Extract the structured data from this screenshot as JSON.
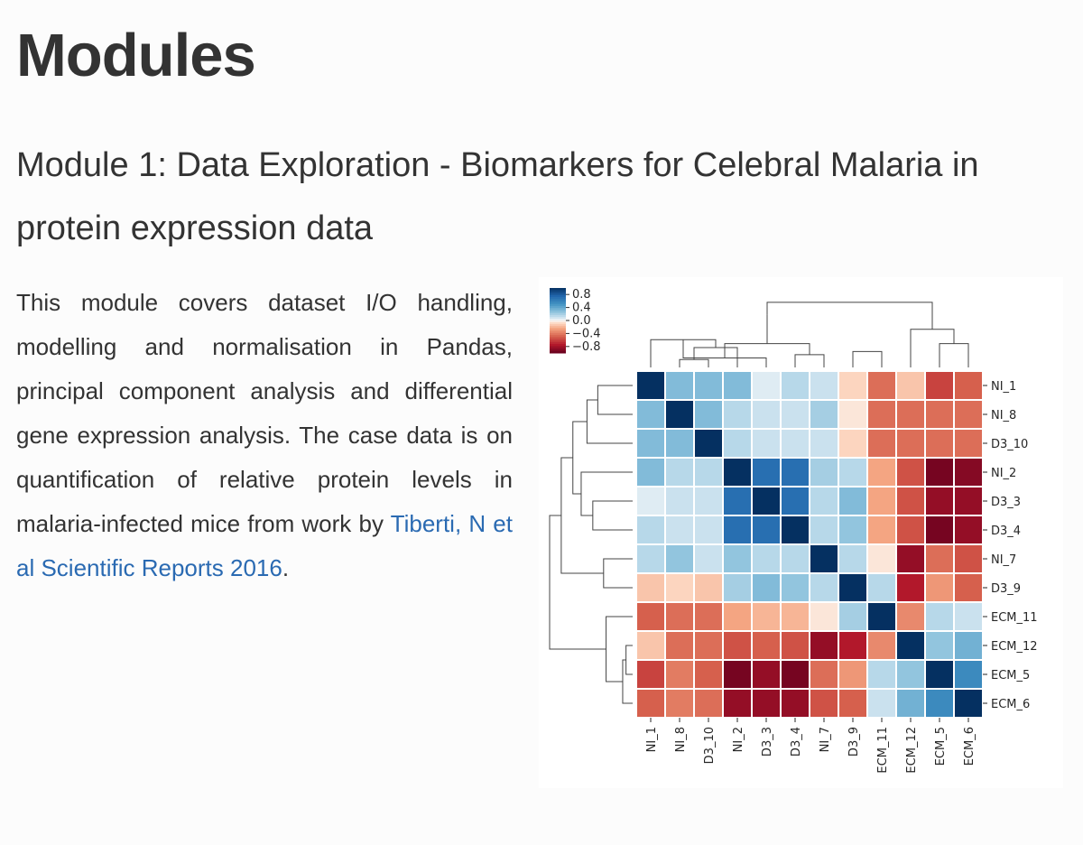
{
  "page": {
    "heading": "Modules",
    "section_title": "Module 1: Data Exploration - Biomarkers for Celebral Malaria in protein expression data",
    "description": "This module covers dataset I/O handling, modelling and normalisation in Pandas, principal component analysis and differential gene expression analysis. The case data is on quantification of relative protein levels in malaria-infected mice from work by",
    "link_text": "Tiberti, N et al Scientific Reports 2016",
    "description_end": "."
  },
  "chart_data": {
    "type": "heatmap",
    "title": "",
    "xlabel": "",
    "ylabel": "",
    "row_labels": [
      "NI_1",
      "NI_8",
      "D3_10",
      "NI_2",
      "D3_3",
      "D3_4",
      "NI_7",
      "D3_9",
      "ECM_11",
      "ECM_12",
      "ECM_5",
      "ECM_6"
    ],
    "col_labels": [
      "NI_1",
      "NI_8",
      "D3_10",
      "NI_2",
      "D3_3",
      "D3_4",
      "NI_7",
      "D3_9",
      "ECM_11",
      "ECM_12",
      "ECM_5",
      "ECM_6"
    ],
    "values": [
      [
        1.0,
        0.3,
        0.3,
        0.3,
        0.05,
        0.15,
        0.1,
        -0.1,
        -0.45,
        -0.15,
        -0.6,
        -0.5
      ],
      [
        0.3,
        1.0,
        0.3,
        0.15,
        0.1,
        0.1,
        0.2,
        -0.05,
        -0.45,
        -0.45,
        -0.45,
        -0.45
      ],
      [
        0.3,
        0.3,
        1.0,
        0.15,
        0.1,
        0.1,
        0.1,
        -0.1,
        -0.45,
        -0.45,
        -0.45,
        -0.45
      ],
      [
        0.3,
        0.15,
        0.15,
        1.0,
        0.7,
        0.7,
        0.2,
        0.15,
        -0.25,
        -0.55,
        -0.95,
        -0.9
      ],
      [
        0.05,
        0.1,
        0.1,
        0.7,
        1.0,
        0.7,
        0.15,
        0.3,
        -0.25,
        -0.55,
        -0.85,
        -0.85
      ],
      [
        0.15,
        0.1,
        0.1,
        0.7,
        0.7,
        1.0,
        0.15,
        0.25,
        -0.25,
        -0.55,
        -0.95,
        -0.85
      ],
      [
        0.15,
        0.25,
        0.1,
        0.25,
        0.15,
        0.15,
        1.0,
        0.15,
        -0.05,
        -0.85,
        -0.45,
        -0.55
      ],
      [
        -0.15,
        -0.1,
        -0.15,
        0.2,
        0.3,
        0.25,
        0.15,
        1.0,
        0.15,
        -0.75,
        -0.3,
        -0.5
      ],
      [
        -0.5,
        -0.45,
        -0.45,
        -0.25,
        -0.2,
        -0.2,
        -0.05,
        0.2,
        1.0,
        -0.35,
        0.15,
        0.1
      ],
      [
        -0.15,
        -0.45,
        -0.45,
        -0.55,
        -0.5,
        -0.55,
        -0.85,
        -0.75,
        -0.35,
        1.0,
        0.25,
        0.35
      ],
      [
        -0.6,
        -0.4,
        -0.5,
        -0.95,
        -0.85,
        -0.95,
        -0.45,
        -0.3,
        0.15,
        0.25,
        1.0,
        0.55
      ],
      [
        -0.5,
        -0.4,
        -0.45,
        -0.85,
        -0.85,
        -0.85,
        -0.55,
        -0.5,
        0.1,
        0.35,
        0.55,
        1.0
      ]
    ],
    "vlim": [
      -1,
      1
    ],
    "colormap": "RdBu",
    "colorbar_ticks": [
      "0.8",
      "0.4",
      "0.0",
      "−0.4",
      "−0.8"
    ],
    "colorbar_tick_values": [
      0.8,
      0.4,
      0.0,
      -0.4,
      -0.8
    ],
    "dendrogram_row": [
      [
        9,
        10,
        0.08
      ],
      [
        10,
        11,
        0.12
      ],
      [
        8,
        9,
        0.32
      ],
      [
        6,
        7,
        0.35
      ],
      [
        0,
        1,
        0.42
      ],
      [
        0,
        2,
        0.55
      ],
      [
        4,
        5,
        0.48
      ],
      [
        3,
        4,
        0.62
      ],
      [
        0,
        3,
        0.72
      ],
      [
        0,
        6,
        0.86
      ],
      [
        0,
        8,
        1.0
      ]
    ],
    "dendrogram_col": [
      [
        1,
        2,
        0.1
      ],
      [
        2,
        3,
        0.25
      ],
      [
        0,
        1,
        0.35
      ],
      [
        3,
        4,
        0.12
      ],
      [
        7,
        8,
        0.2
      ],
      [
        5,
        6,
        0.16
      ],
      [
        3,
        5,
        0.3
      ],
      [
        10,
        11,
        0.3
      ],
      [
        9,
        10,
        0.48
      ],
      [
        0,
        3,
        0.66
      ],
      [
        0,
        9,
        0.82
      ]
    ],
    "colors": {
      "link": "#2a6ab2",
      "heading": "#333333",
      "text": "#333333",
      "grid": "#ffffff",
      "dendro": "#444444"
    }
  }
}
